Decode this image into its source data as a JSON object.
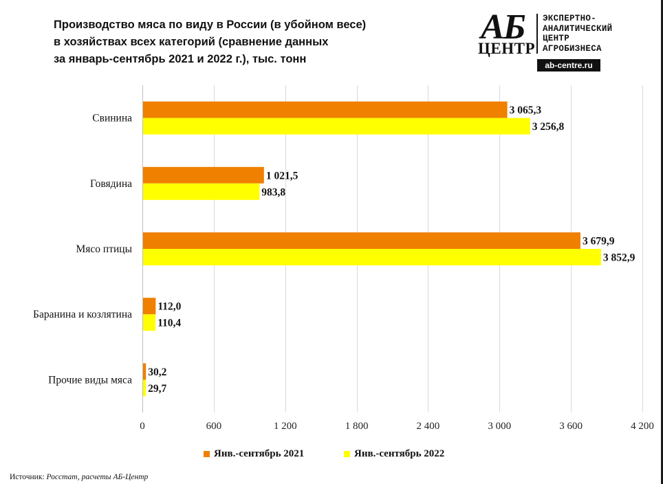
{
  "title_lines": [
    "Производство  мяса  по виду в России (в убойном весе)",
    "в хозяйствах  всех категорий  (сравнение данных",
    "за январь-сентябрь  2021 и 2022 г.), тыс. тонн"
  ],
  "logo": {
    "mark_top": "АБ",
    "mark_bottom": "ЦЕНТР",
    "text_lines": [
      "ЭКСПЕРТНО-",
      "АНАЛИТИЧЕСКИЙ",
      "ЦЕНТР",
      "АГРОБИЗНЕСА"
    ],
    "url": "ab-centre.ru"
  },
  "source": {
    "label": "Источник:",
    "text": "Росстат, расчеты АБ-Центр"
  },
  "chart_data": {
    "type": "bar",
    "orientation": "horizontal",
    "categories": [
      "Свинина",
      "Говядина",
      "Мясо птицы",
      "Баранина и козлятина",
      "Прочие виды мяса"
    ],
    "series": [
      {
        "name": "Янв.-сентябрь 2021",
        "color": "#f08000",
        "values": [
          3065.3,
          1021.5,
          3679.9,
          112.0,
          30.2
        ],
        "labels": [
          "3 065,3",
          "1 021,5",
          "3 679,9",
          "112,0",
          "30,2"
        ]
      },
      {
        "name": "Янв.-сентябрь 2022",
        "color": "#ffff00",
        "values": [
          3256.8,
          983.8,
          3852.9,
          110.4,
          29.7
        ],
        "labels": [
          "3 256,8",
          "983,8",
          "3 852,9",
          "110,4",
          "29,7"
        ]
      }
    ],
    "xlim": [
      0,
      4200
    ],
    "ticks": [
      0,
      600,
      1200,
      1800,
      2400,
      3000,
      3600,
      4200
    ],
    "tick_labels": [
      "0",
      "600",
      "1 200",
      "1 800",
      "2 400",
      "3 000",
      "3 600",
      "4 200"
    ],
    "grid": true,
    "legend_position": "bottom"
  }
}
